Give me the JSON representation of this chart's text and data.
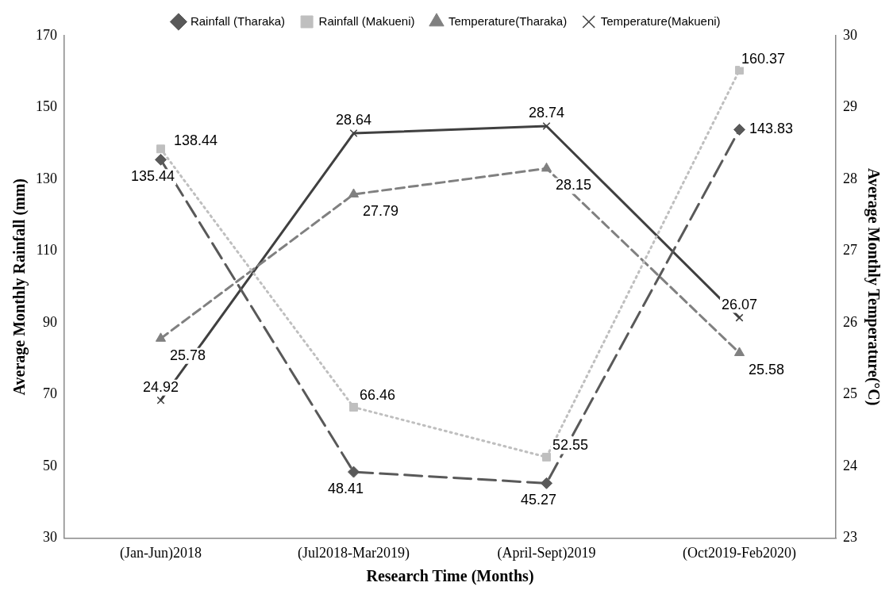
{
  "chart_data": {
    "type": "line",
    "xlabel": "Research Time (Months)",
    "ylabel": "Average Monthly Rainfall (mm)",
    "y2label": "Average Monthly Temperature(°C)",
    "categories": [
      "(Jan-Jun)2018",
      "(Jul2018-Mar2019)",
      "(April-Sept)2019",
      "(Oct2019-Feb2020)"
    ],
    "series": [
      {
        "name": "Rainfall (Tharaka)",
        "color": "#595959",
        "values": [
          135.44,
          48.41,
          45.27,
          143.83
        ],
        "marker": "diamond",
        "line_style": "longdashed"
      },
      {
        "name": "Rainfall (Makueni)",
        "color": "#bfbfbf",
        "values": [
          138.44,
          66.46,
          52.55,
          160.37
        ],
        "marker": "square",
        "line_style": "dotted"
      },
      {
        "name": "Temperature(Tharaka)",
        "color": "#808080",
        "values": [
          25.78,
          27.79,
          28.15,
          25.58
        ],
        "marker": "triangle",
        "line_style": "dashed",
        "axis": "y2"
      },
      {
        "name": "Temperature(Makueni)",
        "color": "#404040",
        "values": [
          24.92,
          28.64,
          28.74,
          26.07
        ],
        "marker": "cross",
        "line_style": "solid",
        "axis": "y2"
      }
    ],
    "ylim": [
      30,
      170
    ],
    "yticks": [
      30,
      50,
      70,
      90,
      110,
      130,
      150,
      170
    ],
    "y2lim": [
      23,
      30
    ],
    "y2ticks": [
      23,
      24,
      25,
      26,
      27,
      28,
      29,
      30
    ],
    "data_labels": true,
    "legend": "top",
    "grid": false
  }
}
